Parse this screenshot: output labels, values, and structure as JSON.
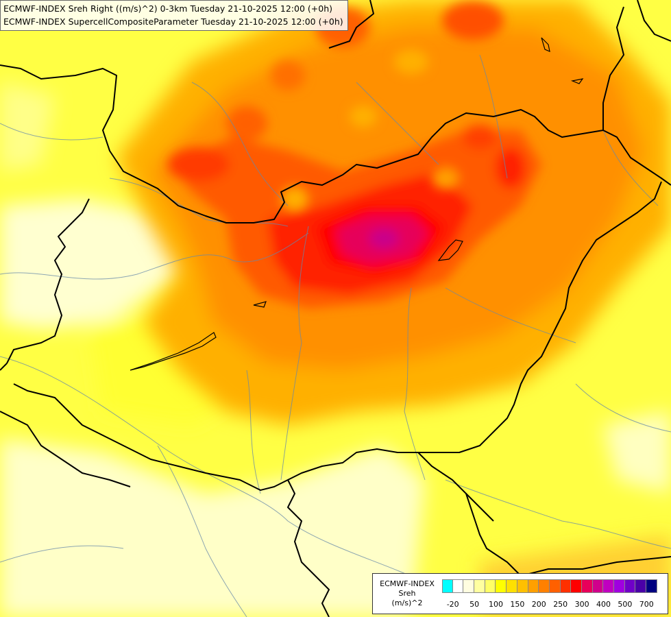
{
  "header": {
    "line1": "ECMWF-INDEX Sreh Right ((m/s)^2) 0-3km Tuesday 21-10-2025 12:00 (+0h)",
    "line2": "ECMWF-INDEX SupercellCompositeParameter Tuesday 21-10-2025 12:00 (+0h)"
  },
  "legend": {
    "line1": "ECMWF-INDEX",
    "line2": "Sreh",
    "line3": "(m/s)^2",
    "colors": [
      "#00ffff",
      "#ffffff",
      "#fffde0",
      "#ffffa0",
      "#ffff66",
      "#ffff00",
      "#ffe000",
      "#ffc000",
      "#ffa000",
      "#ff8000",
      "#ff6000",
      "#ff3000",
      "#ff0000",
      "#e8005a",
      "#d0008c",
      "#c000c0",
      "#a000e0",
      "#7000c8",
      "#4a00a8",
      "#000080"
    ],
    "ticks": [
      {
        "label": "-20",
        "index": 1
      },
      {
        "label": "50",
        "index": 3
      },
      {
        "label": "100",
        "index": 5
      },
      {
        "label": "150",
        "index": 7
      },
      {
        "label": "200",
        "index": 9
      },
      {
        "label": "250",
        "index": 11
      },
      {
        "label": "300",
        "index": 13
      },
      {
        "label": "400",
        "index": 15
      },
      {
        "label": "500",
        "index": 17
      },
      {
        "label": "700",
        "index": 19
      }
    ]
  }
}
